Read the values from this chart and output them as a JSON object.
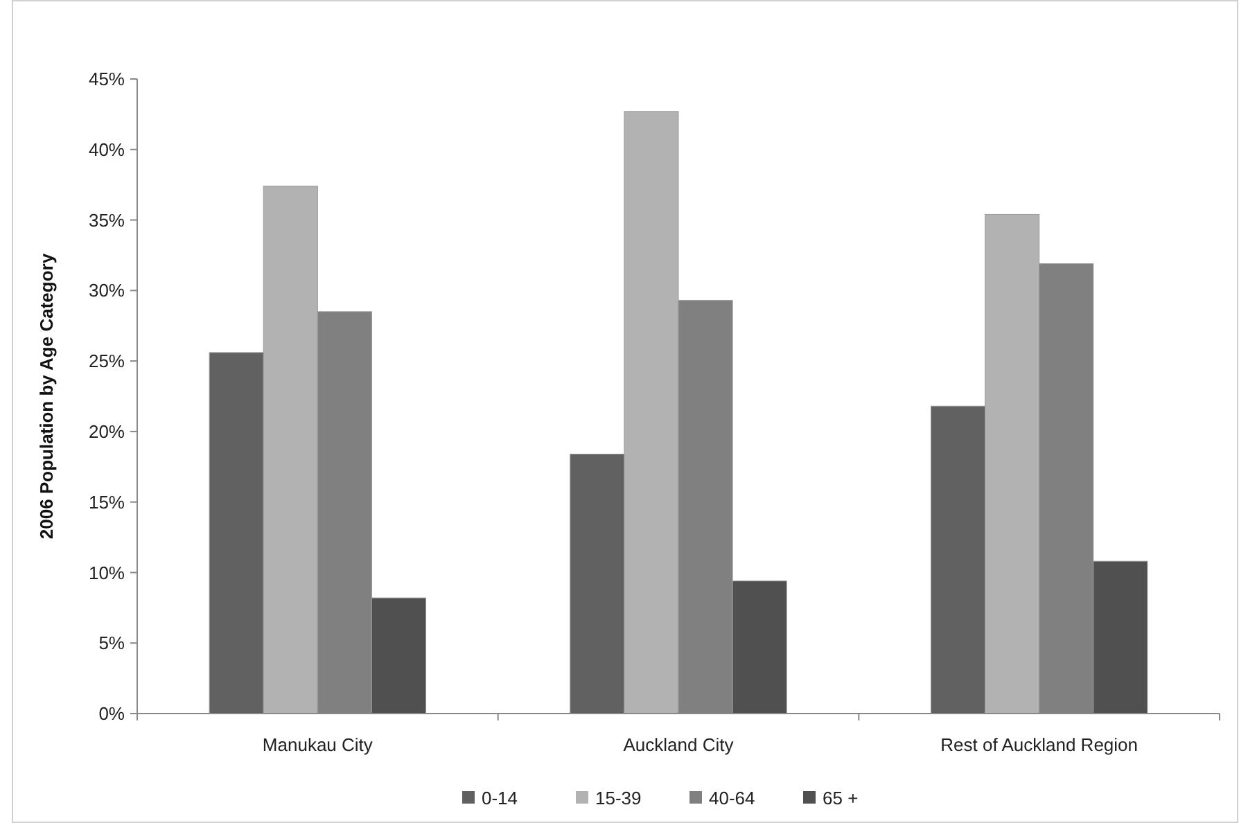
{
  "chart_data": {
    "type": "bar",
    "ylabel": "2006 Population by Age Category",
    "categories": [
      "Manukau City",
      "Auckland City",
      "Rest of Auckland Region"
    ],
    "series": [
      {
        "name": "0-14",
        "color": "#616161",
        "values": [
          25.6,
          18.4,
          21.8
        ]
      },
      {
        "name": "15-39",
        "color": "#b2b2b2",
        "values": [
          37.4,
          42.7,
          35.4
        ]
      },
      {
        "name": "40-64",
        "color": "#808080",
        "values": [
          28.5,
          29.3,
          31.9
        ]
      },
      {
        "name": "65 +",
        "color": "#505050",
        "values": [
          8.2,
          9.4,
          10.8
        ]
      }
    ],
    "ylim": [
      0,
      45
    ],
    "yticks": [
      {
        "value": 0,
        "label": "0%"
      },
      {
        "value": 5,
        "label": "5%"
      },
      {
        "value": 10,
        "label": "10%"
      },
      {
        "value": 15,
        "label": "15%"
      },
      {
        "value": 20,
        "label": "20%"
      },
      {
        "value": 25,
        "label": "25%"
      },
      {
        "value": 30,
        "label": "30%"
      },
      {
        "value": 35,
        "label": "35%"
      },
      {
        "value": 40,
        "label": "40%"
      },
      {
        "value": 45,
        "label": "45%"
      }
    ],
    "grid": false,
    "legend": "bottom"
  }
}
